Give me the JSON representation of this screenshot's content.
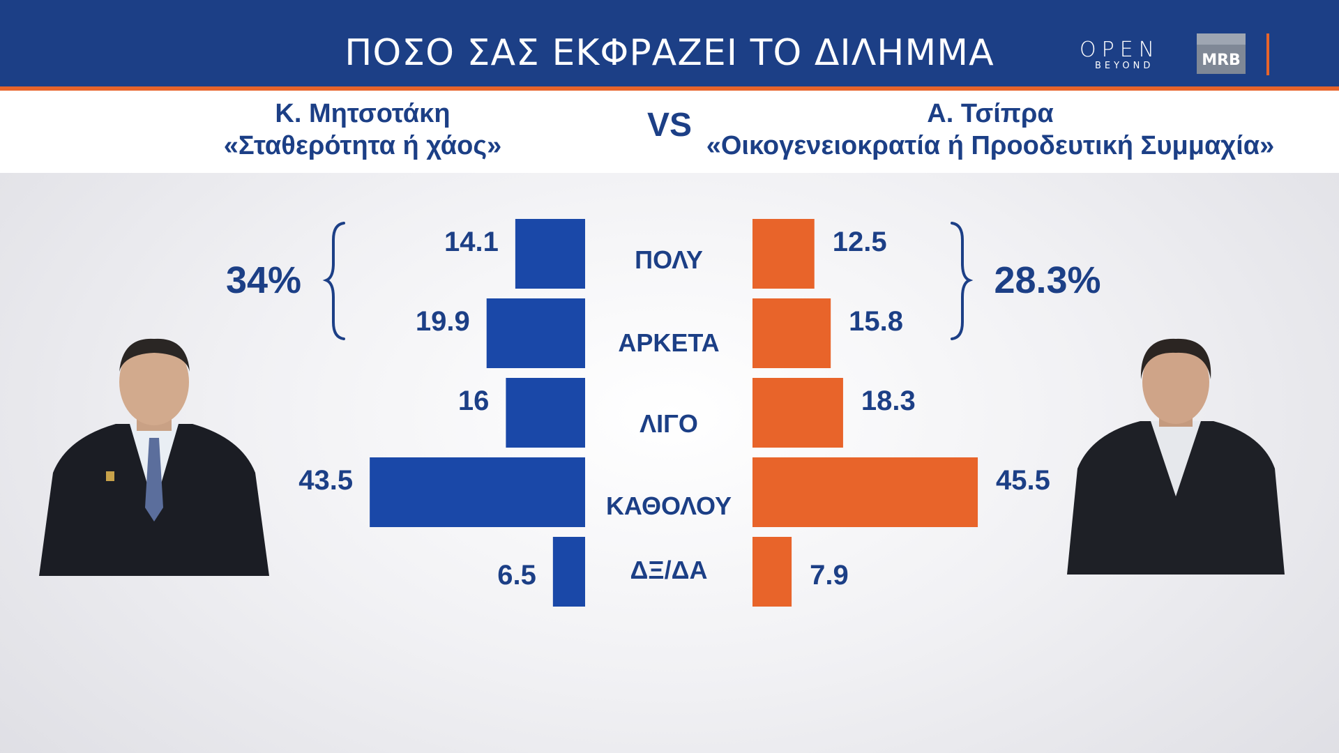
{
  "header": {
    "title": "ΠΟΣΟ ΣΑΣ ΕΚΦΡΑΖΕΙ ΤΟ ΔΙΛΗΜΜΑ",
    "logo_open": "OPEN",
    "logo_beyond": "BEYOND",
    "logo_mrb": "MRB"
  },
  "subheader": {
    "left_name": "Κ. Μητσοτάκη",
    "left_slogan": "«Σταθερότητα ή χάος»",
    "vs": "VS",
    "right_name": "Α. Τσίπρα",
    "right_slogan": "«Οικογενειοκρατία ή Προοδευτική Συμμαχία»"
  },
  "colors": {
    "header_bg": "#1c3f86",
    "accent_orange": "#e8642a",
    "left_bar": "#1a48a8",
    "right_bar": "#e8642a",
    "text_blue": "#1c3f86"
  },
  "chart_data": {
    "type": "bar",
    "orientation": "horizontal-butterfly",
    "categories": [
      "ΠΟΛΥ",
      "ΑΡΚΕΤΑ",
      "ΛΙΓΟ",
      "ΚΑΘΟΛΟΥ",
      "ΔΞ/ΔΑ"
    ],
    "series": [
      {
        "values": [
          14.1,
          19.9,
          16,
          43.5,
          6.5
        ],
        "value_labels": [
          "14.1",
          "19.9",
          "16",
          "43.5",
          "6.5"
        ],
        "color": "#1a48a8",
        "side": "left"
      },
      {
        "values": [
          12.5,
          15.8,
          18.3,
          45.5,
          7.9
        ],
        "value_labels": [
          "12.5",
          "15.8",
          "18.3",
          "45.5",
          "7.9"
        ],
        "color": "#e8642a",
        "side": "right"
      }
    ],
    "group_totals": {
      "left": "34%",
      "right": "28.3%",
      "groups_categories": [
        "ΠΟΛΥ",
        "ΑΡΚΕΤΑ"
      ]
    }
  }
}
